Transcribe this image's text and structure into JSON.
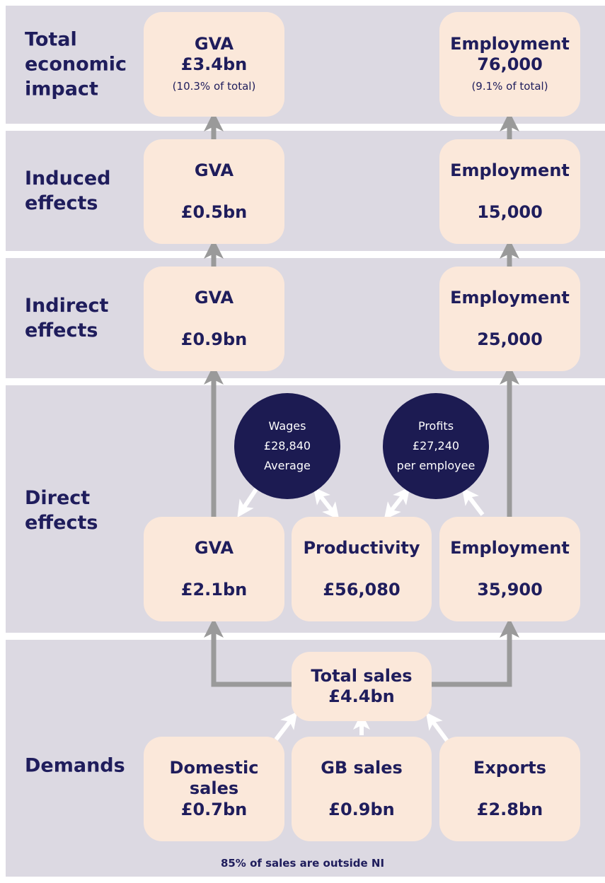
{
  "rows": [
    {
      "label": "Total economic impact",
      "gva": {
        "title": "GVA",
        "value": "£3.4bn",
        "note": "(10.3% of total)"
      },
      "employment": {
        "title": "Employment",
        "value": "76,000",
        "note": "(9.1% of total)"
      }
    },
    {
      "label": "Induced effects",
      "gva": {
        "title": "GVA",
        "value": "£0.5bn"
      },
      "employment": {
        "title": "Employment",
        "value": "15,000"
      }
    },
    {
      "label": "Indirect effects",
      "gva": {
        "title": "GVA",
        "value": "£0.9bn"
      },
      "employment": {
        "title": "Employment",
        "value": "25,000"
      }
    },
    {
      "label": "Direct effects",
      "gva": {
        "title": "GVA",
        "value": "£2.1bn"
      },
      "productivity": {
        "title": "Productivity",
        "value": "£56,080"
      },
      "employment": {
        "title": "Employment",
        "value": "35,900"
      }
    }
  ],
  "circles": [
    {
      "lines": [
        "Wages",
        "£28,840",
        "Average"
      ]
    },
    {
      "lines": [
        "Profits",
        "£27,240",
        "per employee"
      ]
    }
  ],
  "demands": {
    "label": "Demands",
    "total": {
      "title": "Total sales",
      "value": "£4.4bn"
    },
    "boxes": [
      {
        "title": "Domestic sales",
        "value": "£0.7bn"
      },
      {
        "title": "GB sales",
        "value": "£0.9bn"
      },
      {
        "title": "Exports",
        "value": "£2.8bn"
      }
    ],
    "footnote": "85% of sales are outside NI"
  }
}
